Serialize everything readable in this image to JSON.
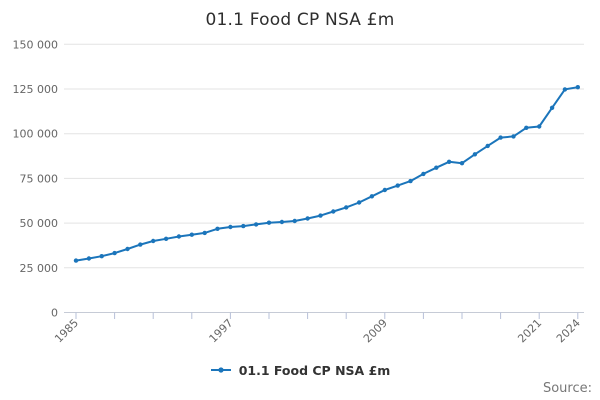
{
  "title": "01.1 Food CP NSA £m",
  "legend": {
    "label": "01.1 Food CP NSA £m"
  },
  "source": {
    "label": "Source:"
  },
  "colors": {
    "line": "#1b75bb",
    "gridline": "#e3e3e3",
    "axis_line": "#c6cbd6",
    "tick_mark": "#b7c0d8"
  },
  "chart_data": {
    "type": "line",
    "title": "01.1 Food CP NSA £m",
    "x": [
      1985,
      1986,
      1987,
      1988,
      1989,
      1990,
      1991,
      1992,
      1993,
      1994,
      1995,
      1996,
      1997,
      1998,
      1999,
      2000,
      2001,
      2002,
      2003,
      2004,
      2005,
      2006,
      2007,
      2008,
      2009,
      2010,
      2011,
      2012,
      2013,
      2014,
      2015,
      2016,
      2017,
      2018,
      2019,
      2020,
      2021,
      2022,
      2023,
      2024
    ],
    "series": [
      {
        "name": "01.1 Food CP NSA £m",
        "values": [
          29000,
          30200,
          31500,
          33200,
          35500,
          38000,
          40000,
          41200,
          42500,
          43500,
          44500,
          46800,
          47800,
          48300,
          49300,
          50200,
          50600,
          51200,
          52600,
          54200,
          56500,
          58800,
          61500,
          65000,
          68500,
          71000,
          73500,
          77500,
          81000,
          84300,
          83500,
          88500,
          93200,
          97800,
          98500,
          103300,
          104000,
          114500,
          124800,
          126000
        ]
      }
    ],
    "ylim": [
      0,
      150000
    ],
    "yticks": [
      0,
      25000,
      50000,
      75000,
      100000,
      125000,
      150000
    ],
    "ytick_labels": [
      "0",
      "25 000",
      "50 000",
      "75 000",
      "100 000",
      "125 000",
      "150 000"
    ],
    "xtick_step_years": 3,
    "xtick_labeled_years": [
      "1985",
      "1997",
      "2009",
      "2021",
      "2024"
    ],
    "grid": "horizontal",
    "legend_position": "bottom",
    "markers": true
  }
}
